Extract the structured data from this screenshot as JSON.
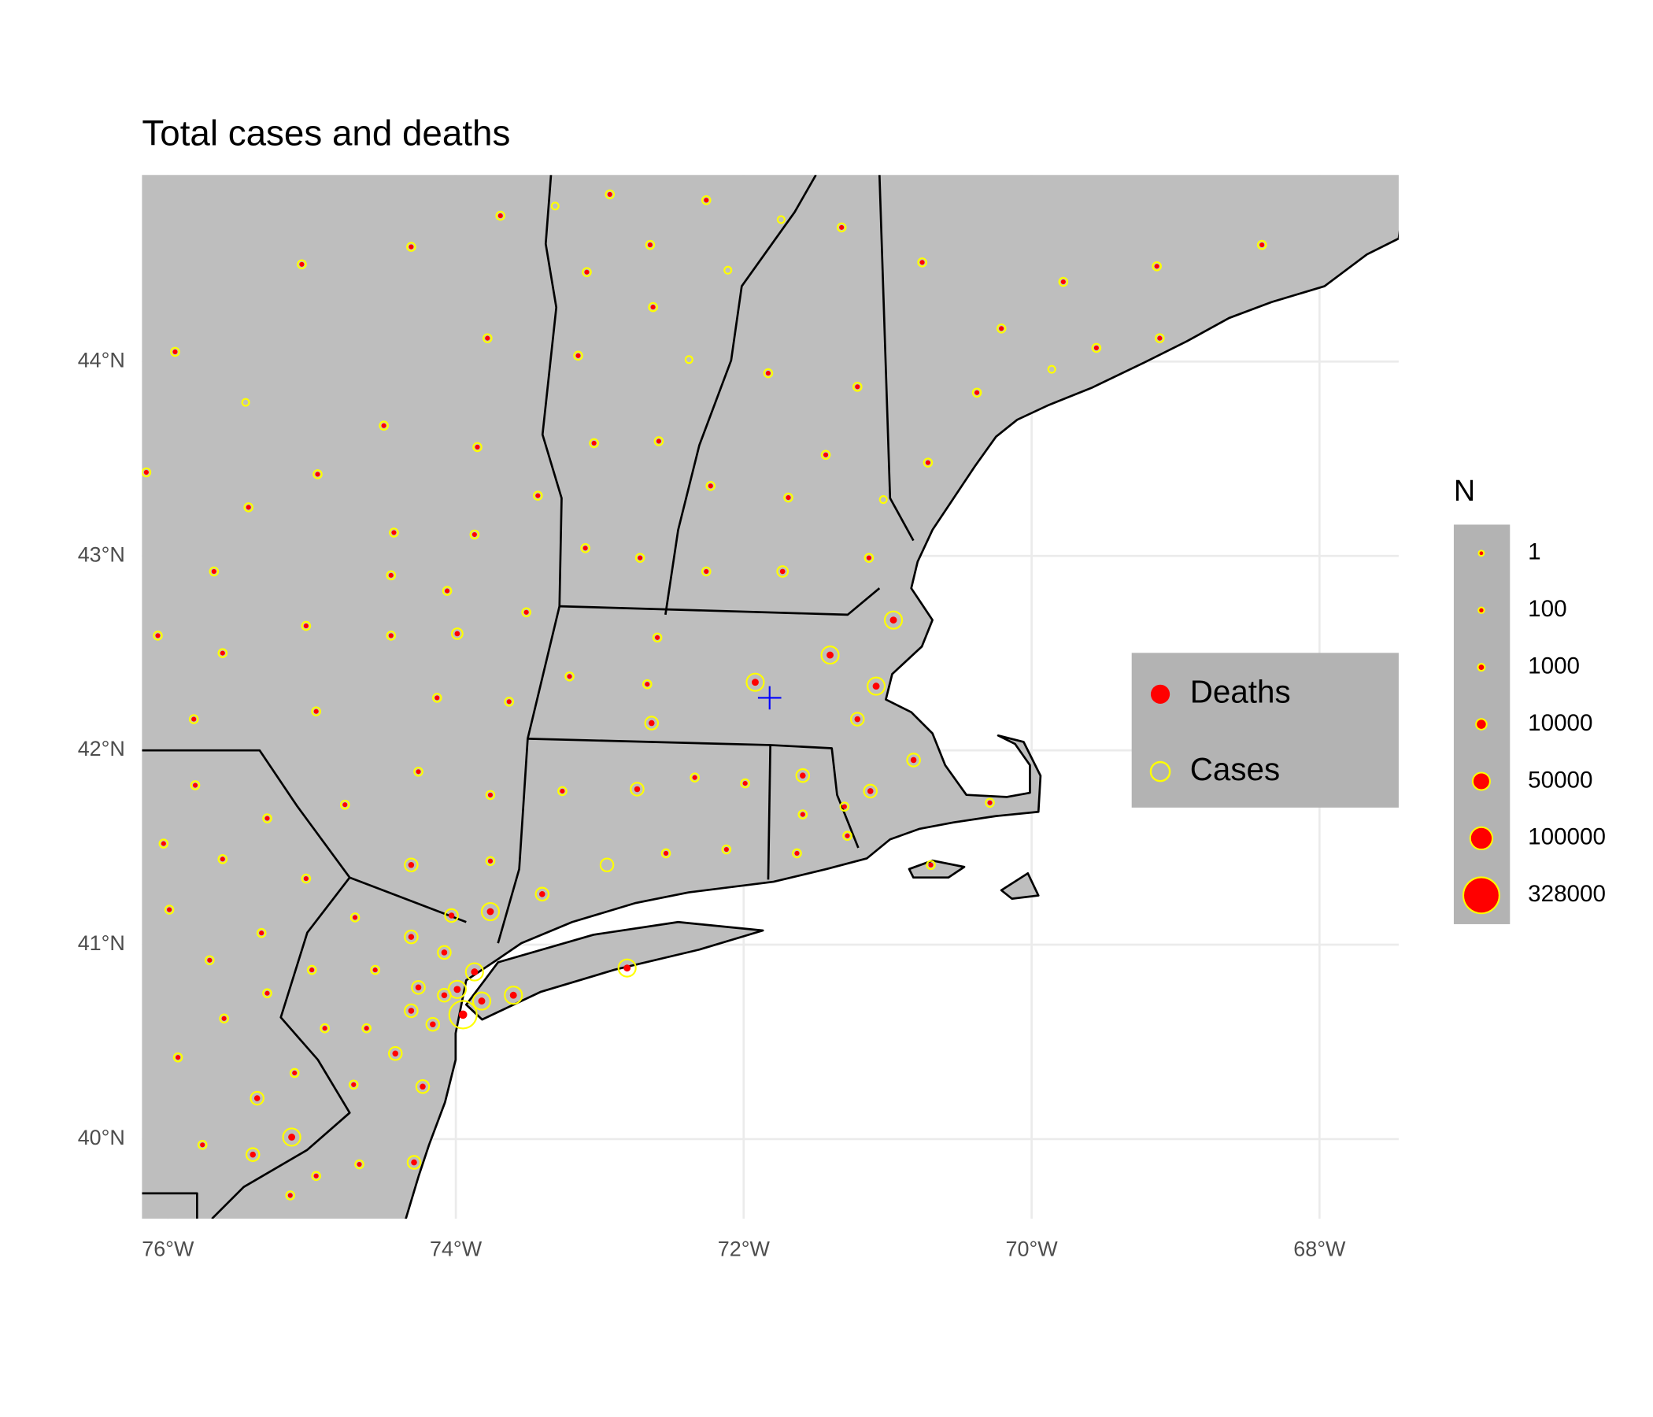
{
  "chart_data": {
    "type": "scatter",
    "title": "Total cases and deaths",
    "xlim": [
      -76.18,
      -67.45
    ],
    "ylim": [
      39.59,
      44.96
    ],
    "xticks": [
      {
        "value": -76,
        "label": "76°W"
      },
      {
        "value": -74,
        "label": "74°W"
      },
      {
        "value": -72,
        "label": "72°W"
      },
      {
        "value": -70,
        "label": "70°W"
      },
      {
        "value": -68,
        "label": "68°W"
      }
    ],
    "yticks": [
      {
        "value": 40,
        "label": "40°N"
      },
      {
        "value": 41,
        "label": "41°N"
      },
      {
        "value": 42,
        "label": "42°N"
      },
      {
        "value": 43,
        "label": "43°N"
      },
      {
        "value": 44,
        "label": "44°N"
      }
    ],
    "grid": true,
    "land_color": "#bebebe",
    "x": [
      -75.07,
      -74.31,
      -73.69,
      -72.93,
      -72.26,
      -73.31,
      -72.65,
      -73.09,
      -72.11,
      -71.74,
      -71.32,
      -70.76,
      -69.78,
      -69.13,
      -68.4,
      -75.95,
      -73.78,
      -73.15,
      -72.63,
      -72.38,
      -71.83,
      -71.21,
      -70.21,
      -69.55,
      -69.11,
      -69.86,
      -75.46,
      -74.5,
      -73.85,
      -73.04,
      -72.59,
      -71.43,
      -70.38,
      -70.72,
      -76.15,
      -74.96,
      -75.44,
      -73.43,
      -72.23,
      -71.69,
      -71.03,
      -74.43,
      -73.87,
      -73.1,
      -72.72,
      -72.26,
      -71.73,
      -71.13,
      -75.68,
      -74.45,
      -74.06,
      -73.51,
      -76.07,
      -75.04,
      -74.45,
      -73.99,
      -72.6,
      -75.62,
      -70.96,
      -71.4,
      -71.92,
      -71.08,
      -73.21,
      -72.67,
      -72.64,
      -74.97,
      -74.13,
      -73.63,
      -75.82,
      -71.21,
      -70.82,
      -75.81,
      -74.77,
      -74.26,
      -73.76,
      -73.26,
      -72.74,
      -72.34,
      -71.99,
      -71.59,
      -71.12,
      -70.29,
      -75.31,
      -71.59,
      -71.3,
      -76.03,
      -75.62,
      -74.31,
      -73.76,
      -72.95,
      -72.54,
      -72.12,
      -71.63,
      -71.28,
      -70.7,
      -75.04,
      -73.4,
      -75.99,
      -74.7,
      -74.03,
      -73.76,
      -75.35,
      -74.31,
      -74.08,
      -75.71,
      -75.0,
      -74.56,
      -73.87,
      -72.81,
      -74.26,
      -73.99,
      -74.08,
      -73.6,
      -73.82,
      -74.31,
      -73.95,
      -75.31,
      -75.61,
      -74.91,
      -74.62,
      -74.16,
      -75.93,
      -74.42,
      -74.71,
      -74.23,
      -75.12,
      -75.38,
      -75.76,
      -75.14,
      -75.41,
      -74.97,
      -74.67,
      -74.29,
      -75.15
    ],
    "y": [
      44.5,
      44.59,
      44.75,
      44.86,
      44.83,
      44.8,
      44.6,
      44.46,
      44.47,
      44.73,
      44.69,
      44.51,
      44.41,
      44.49,
      44.6,
      44.05,
      44.12,
      44.03,
      44.28,
      44.01,
      43.94,
      43.87,
      44.17,
      44.07,
      44.12,
      43.96,
      43.79,
      43.67,
      43.56,
      43.58,
      43.59,
      43.52,
      43.84,
      43.48,
      43.43,
      43.42,
      43.25,
      43.31,
      43.36,
      43.3,
      43.29,
      43.12,
      43.11,
      43.04,
      42.99,
      42.92,
      42.92,
      42.99,
      42.92,
      42.9,
      42.82,
      42.71,
      42.59,
      42.64,
      42.59,
      42.6,
      42.58,
      42.5,
      42.67,
      42.49,
      42.35,
      42.33,
      42.38,
      42.34,
      42.14,
      42.2,
      42.27,
      42.25,
      42.16,
      42.16,
      41.95,
      41.82,
      41.72,
      41.89,
      41.77,
      41.79,
      41.8,
      41.86,
      41.83,
      41.87,
      41.79,
      41.73,
      41.65,
      41.67,
      41.71,
      41.52,
      41.44,
      41.41,
      41.43,
      41.41,
      41.47,
      41.49,
      41.47,
      41.56,
      41.41,
      41.34,
      41.26,
      41.18,
      41.14,
      41.15,
      41.17,
      41.06,
      41.04,
      40.96,
      40.92,
      40.87,
      40.87,
      40.86,
      40.88,
      40.78,
      40.77,
      40.74,
      40.74,
      40.71,
      40.66,
      40.64,
      40.75,
      40.62,
      40.57,
      40.57,
      40.59,
      40.42,
      40.44,
      40.28,
      40.27,
      40.34,
      40.21,
      39.97,
      40.01,
      39.92,
      39.81,
      39.87,
      39.88,
      39.71
    ],
    "series": [
      {
        "name": "Deaths",
        "color": "red",
        "values": [
          50,
          50,
          50,
          50,
          50,
          0,
          50,
          50,
          0,
          0,
          50,
          50,
          50,
          50,
          50,
          50,
          50,
          50,
          50,
          0,
          50,
          50,
          50,
          50,
          50,
          0,
          0,
          50,
          50,
          50,
          50,
          50,
          50,
          50,
          50,
          50,
          50,
          50,
          50,
          50,
          0,
          50,
          50,
          50,
          50,
          50,
          300,
          50,
          50,
          50,
          50,
          50,
          50,
          50,
          50,
          300,
          50,
          50,
          3000,
          3000,
          3000,
          3000,
          50,
          50,
          1000,
          50,
          50,
          50,
          50,
          1000,
          1000,
          50,
          50,
          50,
          50,
          50,
          1000,
          50,
          50,
          1000,
          1000,
          50,
          50,
          50,
          50,
          50,
          50,
          1000,
          50,
          0,
          50,
          50,
          50,
          50,
          50,
          50,
          1000,
          50,
          50,
          1000,
          3000,
          50,
          1000,
          1000,
          50,
          50,
          50,
          3000,
          3000,
          1000,
          3000,
          1000,
          3000,
          3000,
          1000,
          7000,
          50,
          50,
          50,
          50,
          1000,
          50,
          1000,
          50,
          1000,
          50,
          1000,
          50,
          3000,
          1000,
          50,
          50,
          1000,
          50
        ]
      },
      {
        "name": "Cases",
        "color": "yellow",
        "values": [
          3000,
          3000,
          3000,
          3000,
          3000,
          1000,
          3000,
          3000,
          1000,
          1000,
          3000,
          3000,
          3000,
          3000,
          3000,
          3000,
          3000,
          3000,
          3000,
          1000,
          3000,
          3000,
          3000,
          3000,
          3000,
          1000,
          1000,
          3000,
          3000,
          3000,
          3000,
          3000,
          3000,
          3000,
          3000,
          3000,
          3000,
          3000,
          3000,
          3000,
          1000,
          3000,
          3000,
          3000,
          3000,
          3000,
          10000,
          3000,
          3000,
          3000,
          3000,
          3000,
          3000,
          3000,
          3000,
          10000,
          3000,
          3000,
          50000,
          50000,
          50000,
          50000,
          3000,
          3000,
          20000,
          3000,
          3000,
          3000,
          3000,
          20000,
          20000,
          3000,
          3000,
          3000,
          3000,
          3000,
          20000,
          3000,
          3000,
          20000,
          20000,
          3000,
          3000,
          3000,
          3000,
          3000,
          3000,
          20000,
          3000,
          20000,
          3000,
          3000,
          3000,
          3000,
          3000,
          3000,
          20000,
          3000,
          3000,
          20000,
          50000,
          3000,
          20000,
          20000,
          3000,
          3000,
          3000,
          50000,
          50000,
          20000,
          50000,
          20000,
          50000,
          50000,
          20000,
          172000,
          3000,
          3000,
          3000,
          3000,
          20000,
          3000,
          20000,
          3000,
          20000,
          3000,
          20000,
          3000,
          50000,
          20000,
          3000,
          3000,
          20000,
          3000
        ]
      }
    ],
    "size_legend": {
      "title": "N",
      "values": [
        1,
        100,
        1000,
        10000,
        50000,
        100000,
        328000
      ]
    },
    "marker": {
      "x": -71.82,
      "y": 42.27,
      "color": "blue"
    }
  }
}
